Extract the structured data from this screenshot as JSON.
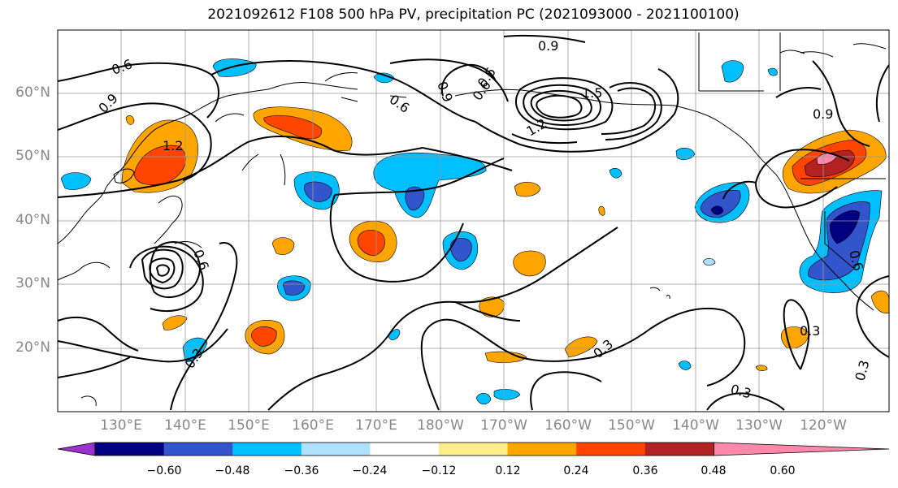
{
  "title": "2021092612 F108 500 hPa PV, precipitation PC (2021093000 - 2021100100)",
  "lat_labels": [
    "60°N",
    "50°N",
    "40°N",
    "30°N",
    "20°N"
  ],
  "lon_labels": [
    "130°E",
    "140°E",
    "150°E",
    "160°E",
    "170°E",
    "180°W",
    "170°W",
    "160°W",
    "150°W",
    "140°W",
    "130°W",
    "120°W"
  ],
  "contour_labels": [
    "0.6",
    "0.9",
    "1.2",
    "0.6",
    "0.9",
    "0.6",
    "0.6",
    "0.9",
    "1.5",
    "1.2",
    "0.9",
    "0.6",
    "0.3",
    "0.3",
    "0.3",
    "0.3",
    "0.6",
    "0.3"
  ],
  "colorbar": {
    "tick_labels": [
      "−0.60",
      "−0.48",
      "−0.36",
      "−0.24",
      "−0.12",
      "0.12",
      "0.24",
      "0.36",
      "0.48",
      "0.60"
    ],
    "colors": [
      "#9933cc",
      "#000080",
      "#3355cc",
      "#00bfff",
      "#b0e0ff",
      "#ffffff",
      "#ffec8b",
      "#ffa500",
      "#ff4500",
      "#b22222",
      "#ff88aa"
    ]
  }
}
